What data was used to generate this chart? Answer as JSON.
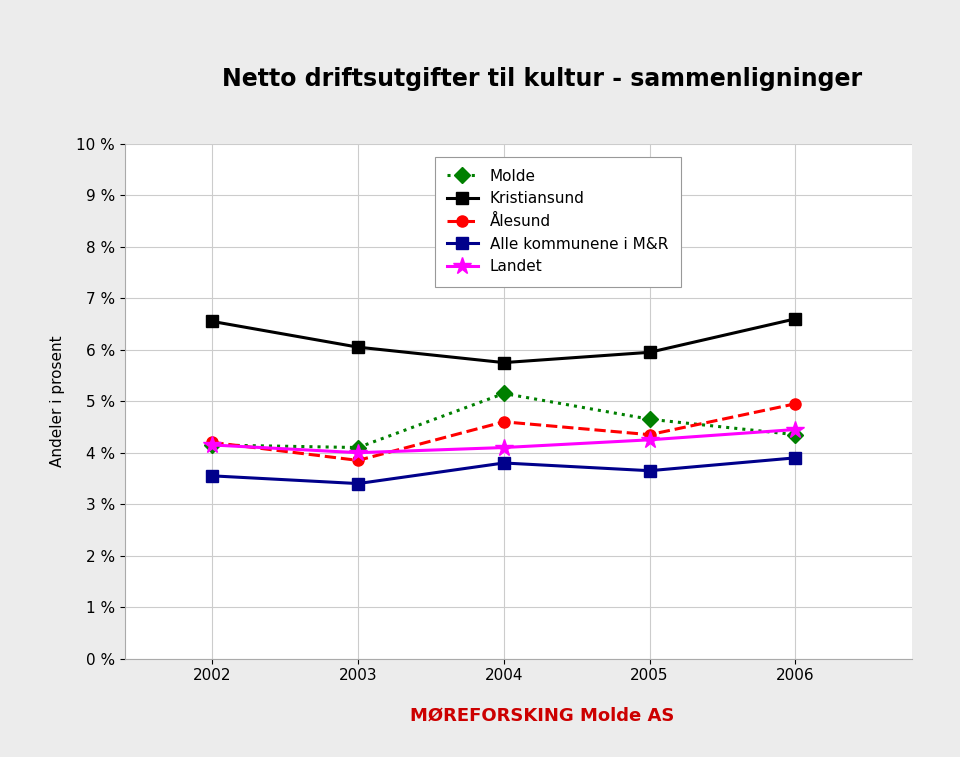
{
  "title": "Netto driftsutgifter til kultur - sammenligninger",
  "xlabel": "",
  "ylabel": "Andeler i prosent",
  "years": [
    2002,
    2003,
    2004,
    2005,
    2006
  ],
  "series": {
    "Molde": {
      "values": [
        4.15,
        4.1,
        5.15,
        4.65,
        4.35
      ],
      "color": "#008000",
      "linestyle": "dotted",
      "marker": "D",
      "linewidth": 2.2
    },
    "Kristiansund": {
      "values": [
        6.55,
        6.05,
        5.75,
        5.95,
        6.6
      ],
      "color": "#000000",
      "linestyle": "solid",
      "marker": "s",
      "linewidth": 2.2
    },
    "Ålesund": {
      "values": [
        4.2,
        3.85,
        4.6,
        4.35,
        4.95
      ],
      "color": "#ff0000",
      "linestyle": "dashed",
      "marker": "o",
      "linewidth": 2.2
    },
    "Alle kommunene i M&R": {
      "values": [
        3.55,
        3.4,
        3.8,
        3.65,
        3.9
      ],
      "color": "#00008B",
      "linestyle": "solid",
      "marker": "s",
      "linewidth": 2.2
    },
    "Landet": {
      "values": [
        4.15,
        4.0,
        4.1,
        4.25,
        4.45
      ],
      "color": "#FF00FF",
      "linestyle": "solid",
      "marker": "*",
      "linewidth": 2.2
    }
  },
  "ylim": [
    0,
    10
  ],
  "yticks": [
    0,
    1,
    2,
    3,
    4,
    5,
    6,
    7,
    8,
    9,
    10
  ],
  "ytick_labels": [
    "0 %",
    "1 %",
    "2 %",
    "3 %",
    "4 %",
    "5 %",
    "6 %",
    "7 %",
    "8 %",
    "9 %",
    "10 %"
  ],
  "background_color": "#ececec",
  "plot_background": "#ffffff",
  "left_bar_color": "#8dc63f",
  "title_fontsize": 17,
  "legend_fontsize": 11,
  "axis_fontsize": 11,
  "xlim": [
    2001.4,
    2006.8
  ]
}
